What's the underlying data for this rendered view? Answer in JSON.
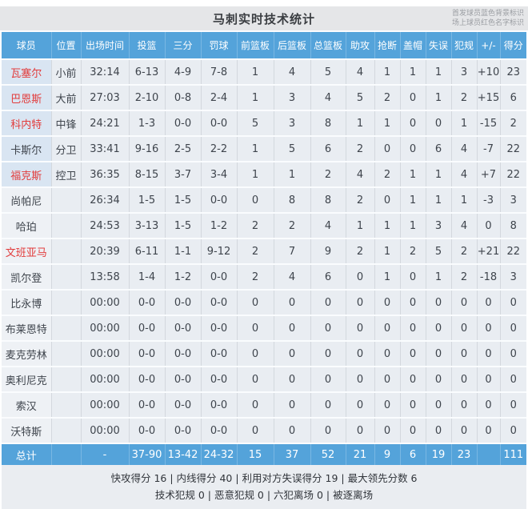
{
  "page": {
    "title": "马刺实时技术统计",
    "legend_line1": "首发球员蓝色背景标识",
    "legend_line2": "场上球员红色名字标识"
  },
  "table": {
    "columns": [
      "球员",
      "位置",
      "出场时间",
      "投篮",
      "三分",
      "罚球",
      "前篮板",
      "后篮板",
      "总篮板",
      "助攻",
      "抢断",
      "盖帽",
      "失误",
      "犯规",
      "+/-",
      "得分"
    ],
    "rows": [
      {
        "name": "瓦塞尔",
        "starter": true,
        "on_court": true,
        "cells": [
          "小前",
          "32:14",
          "6-13",
          "4-9",
          "7-8",
          "1",
          "4",
          "5",
          "4",
          "1",
          "1",
          "1",
          "3",
          "+10",
          "23"
        ]
      },
      {
        "name": "巴恩斯",
        "starter": true,
        "on_court": true,
        "cells": [
          "大前",
          "27:03",
          "2-10",
          "0-8",
          "2-4",
          "1",
          "3",
          "4",
          "5",
          "2",
          "0",
          "1",
          "2",
          "+15",
          "6"
        ]
      },
      {
        "name": "科内特",
        "starter": true,
        "on_court": true,
        "cells": [
          "中锋",
          "24:21",
          "1-3",
          "0-0",
          "0-0",
          "5",
          "3",
          "8",
          "1",
          "1",
          "0",
          "0",
          "1",
          "-15",
          "2"
        ]
      },
      {
        "name": "卡斯尔",
        "starter": true,
        "on_court": false,
        "cells": [
          "分卫",
          "33:41",
          "9-16",
          "2-5",
          "2-2",
          "1",
          "5",
          "6",
          "2",
          "0",
          "0",
          "6",
          "4",
          "-7",
          "22"
        ]
      },
      {
        "name": "福克斯",
        "starter": true,
        "on_court": true,
        "cells": [
          "控卫",
          "36:35",
          "8-15",
          "3-7",
          "3-4",
          "1",
          "1",
          "2",
          "4",
          "2",
          "1",
          "1",
          "4",
          "+7",
          "22"
        ]
      },
      {
        "name": "尚帕尼",
        "starter": false,
        "on_court": false,
        "cells": [
          "",
          "26:34",
          "1-5",
          "1-5",
          "0-0",
          "0",
          "8",
          "8",
          "2",
          "0",
          "1",
          "1",
          "1",
          "-3",
          "3"
        ]
      },
      {
        "name": "哈珀",
        "starter": false,
        "on_court": false,
        "cells": [
          "",
          "24:53",
          "3-13",
          "1-5",
          "1-2",
          "2",
          "2",
          "4",
          "1",
          "1",
          "1",
          "3",
          "4",
          "0",
          "8"
        ]
      },
      {
        "name": "文班亚马",
        "starter": false,
        "on_court": true,
        "cells": [
          "",
          "20:39",
          "6-11",
          "1-1",
          "9-12",
          "2",
          "7",
          "9",
          "2",
          "1",
          "2",
          "5",
          "2",
          "+21",
          "22"
        ]
      },
      {
        "name": "凯尔登",
        "starter": false,
        "on_court": false,
        "cells": [
          "",
          "13:58",
          "1-4",
          "1-2",
          "0-0",
          "2",
          "4",
          "6",
          "0",
          "1",
          "0",
          "1",
          "2",
          "-18",
          "3"
        ]
      },
      {
        "name": "比永博",
        "starter": false,
        "on_court": false,
        "cells": [
          "",
          "00:00",
          "0-0",
          "0-0",
          "0-0",
          "0",
          "0",
          "0",
          "0",
          "0",
          "0",
          "0",
          "0",
          "0",
          "0"
        ]
      },
      {
        "name": "布莱恩特",
        "starter": false,
        "on_court": false,
        "cells": [
          "",
          "00:00",
          "0-0",
          "0-0",
          "0-0",
          "0",
          "0",
          "0",
          "0",
          "0",
          "0",
          "0",
          "0",
          "0",
          "0"
        ]
      },
      {
        "name": "麦克劳林",
        "starter": false,
        "on_court": false,
        "cells": [
          "",
          "00:00",
          "0-0",
          "0-0",
          "0-0",
          "0",
          "0",
          "0",
          "0",
          "0",
          "0",
          "0",
          "0",
          "0",
          "0"
        ]
      },
      {
        "name": "奥利尼克",
        "starter": false,
        "on_court": false,
        "cells": [
          "",
          "00:00",
          "0-0",
          "0-0",
          "0-0",
          "0",
          "0",
          "0",
          "0",
          "0",
          "0",
          "0",
          "0",
          "0",
          "0"
        ]
      },
      {
        "name": "索汉",
        "starter": false,
        "on_court": false,
        "cells": [
          "",
          "00:00",
          "0-0",
          "0-0",
          "0-0",
          "0",
          "0",
          "0",
          "0",
          "0",
          "0",
          "0",
          "0",
          "0",
          "0"
        ]
      },
      {
        "name": "沃特斯",
        "starter": false,
        "on_court": false,
        "cells": [
          "",
          "00:00",
          "0-0",
          "0-0",
          "0-0",
          "0",
          "0",
          "0",
          "0",
          "0",
          "0",
          "0",
          "0",
          "0",
          "0"
        ]
      }
    ],
    "total": {
      "label": "总计",
      "cells": [
        "",
        "-",
        "37-90",
        "13-42",
        "24-32",
        "15",
        "37",
        "52",
        "21",
        "9",
        "6",
        "19",
        "23",
        "",
        "111"
      ]
    }
  },
  "footer": {
    "separator": "|",
    "line1": [
      {
        "label": "快攻得分",
        "value": "16"
      },
      {
        "label": "内线得分",
        "value": "40"
      },
      {
        "label": "利用对方失误得分",
        "value": "19"
      },
      {
        "label": "最大领先分数",
        "value": "6"
      }
    ],
    "line2": [
      {
        "label": "技术犯规",
        "value": "0"
      },
      {
        "label": "恶意犯规",
        "value": "0"
      },
      {
        "label": "六犯离场",
        "value": "0"
      },
      {
        "label": "被逐离场",
        "value": ""
      }
    ]
  },
  "colors": {
    "header_blue": "#54a3da",
    "starter_cell_blue": "#d9e5f2",
    "on_court_red": "#e23c3c",
    "row_bg": "#e9edf2",
    "title_bar_bg": "#e5e6e8",
    "text_dark": "#3e444c"
  }
}
